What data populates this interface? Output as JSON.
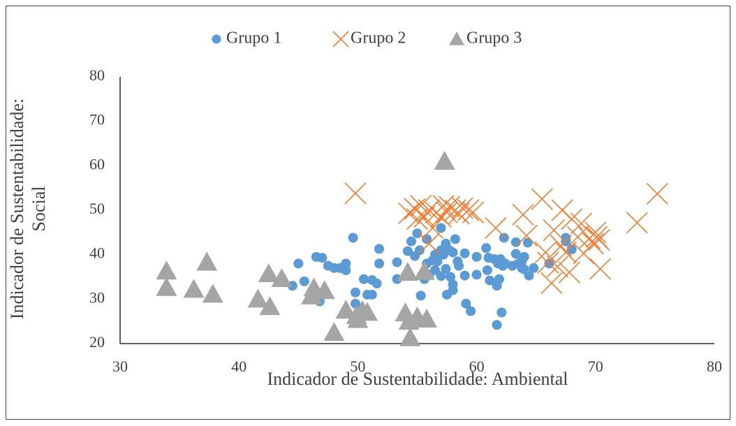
{
  "chart_data": {
    "type": "scatter",
    "xlabel": "Indicador de Sustentabilidade: Ambiental",
    "ylabel": "Indicador de Sustentabilidade: Social",
    "xlim": [
      30,
      80
    ],
    "xticks": [
      30,
      40,
      50,
      60,
      70,
      80
    ],
    "ylim": [
      20,
      80
    ],
    "yticks": [
      20,
      30,
      40,
      50,
      60,
      70,
      80
    ],
    "grid": false,
    "legend": "top",
    "series": [
      {
        "name": "Grupo 1",
        "color": "#5b9bd5",
        "marker": "circle",
        "x": [
          45,
          44.5,
          45.5,
          46.5,
          47,
          47.5,
          48,
          48.5,
          49,
          49,
          49.6,
          46.8,
          49.8,
          49.8,
          50.2,
          50.5,
          50.8,
          51.2,
          51.2,
          51.6,
          51.8,
          51.8,
          53.3,
          53.3,
          54.2,
          54.5,
          54.8,
          55,
          55.2,
          55.3,
          55.6,
          55.8,
          55.8,
          56,
          56.3,
          56.5,
          56.7,
          57,
          57,
          57,
          57.2,
          57.4,
          57.4,
          57.5,
          57.7,
          57.8,
          58,
          58,
          58.2,
          58.4,
          58.5,
          59,
          59,
          59.1,
          59.5,
          60,
          60,
          60.8,
          60.9,
          61,
          61.1,
          61.5,
          61.7,
          61.7,
          61.8,
          61.9,
          62.1,
          62.2,
          62.3,
          62.4,
          63,
          63.3,
          63.3,
          63.5,
          63.8,
          64,
          64,
          64.3,
          64.4,
          64.8,
          66.1,
          67.5,
          67.5,
          68,
          56.5,
          58,
          63.8,
          62
        ],
        "values": [
          38,
          33,
          34,
          39.5,
          39.3,
          37.5,
          37,
          37,
          36.5,
          38,
          43.8,
          29.5,
          31.5,
          29,
          28,
          34.5,
          31,
          34.3,
          31,
          33.5,
          41.3,
          38,
          38.3,
          34.5,
          40.8,
          43,
          39.7,
          44.8,
          41,
          30.8,
          34.5,
          43.5,
          38,
          35.5,
          38.7,
          36.5,
          38.5,
          46,
          41,
          35.2,
          40,
          42.5,
          36.8,
          31,
          41,
          35,
          32,
          33.3,
          43.5,
          38.5,
          37.5,
          40.3,
          35.3,
          29,
          27.3,
          39.5,
          35.5,
          41.5,
          36.5,
          39.3,
          34.2,
          39,
          33,
          24.2,
          38,
          34.5,
          27,
          37.5,
          43.8,
          38,
          37.5,
          42.8,
          40.2,
          38,
          37,
          39.5,
          36.7,
          42.7,
          35.3,
          37,
          38,
          43.8,
          43,
          41.2,
          40,
          40.5,
          38.5,
          39
        ]
      },
      {
        "name": "Grupo 2",
        "color": "#ed7d31",
        "marker": "x",
        "x": [
          49.8,
          54.3,
          54.8,
          55,
          55.3,
          55.6,
          56,
          56.3,
          56.6,
          57,
          57.2,
          57.5,
          57.7,
          58.2,
          58.5,
          58.8,
          59.3,
          59.7,
          61.6,
          63.9,
          64.2,
          65.5,
          65.8,
          66,
          66.3,
          66.5,
          66.8,
          67.1,
          67.2,
          67.8,
          68,
          68.5,
          68.8,
          69,
          69.5,
          69.8,
          70,
          70.1,
          70.3,
          70.4,
          73.5,
          75.2,
          56,
          67.5
        ],
        "values": [
          53.8,
          49.3,
          50.3,
          48,
          51,
          48.5,
          50,
          46,
          49.4,
          48.5,
          51,
          49.5,
          50.8,
          50,
          49.2,
          50.5,
          50,
          49.5,
          46,
          49,
          44.3,
          52.5,
          40.5,
          38.2,
          33.6,
          45.5,
          37.3,
          42,
          50,
          36,
          48,
          44,
          47,
          40.3,
          43.7,
          42.5,
          45,
          44,
          43.3,
          36.8,
          47.2,
          53.7,
          42.5,
          40.5
        ]
      },
      {
        "name": "Grupo 3",
        "color": "#a5a5a5",
        "marker": "triangle",
        "x": [
          33.9,
          33.9,
          36.2,
          37.3,
          37.8,
          41.6,
          42.5,
          42.6,
          43.6,
          46.3,
          46.1,
          47.2,
          48,
          49,
          49.9,
          50,
          50.4,
          50.8,
          54,
          54.2,
          54.3,
          54.4,
          55,
          55.6,
          55.8,
          57.3
        ],
        "values": [
          36.3,
          32.6,
          32.2,
          38.3,
          31.1,
          30,
          35.7,
          28.3,
          34.6,
          32.5,
          30.7,
          31.9,
          22.5,
          27.5,
          26.3,
          25.4,
          27.4,
          27,
          26.9,
          36,
          25,
          21.3,
          26,
          36.2,
          25.5,
          61
        ]
      }
    ]
  }
}
